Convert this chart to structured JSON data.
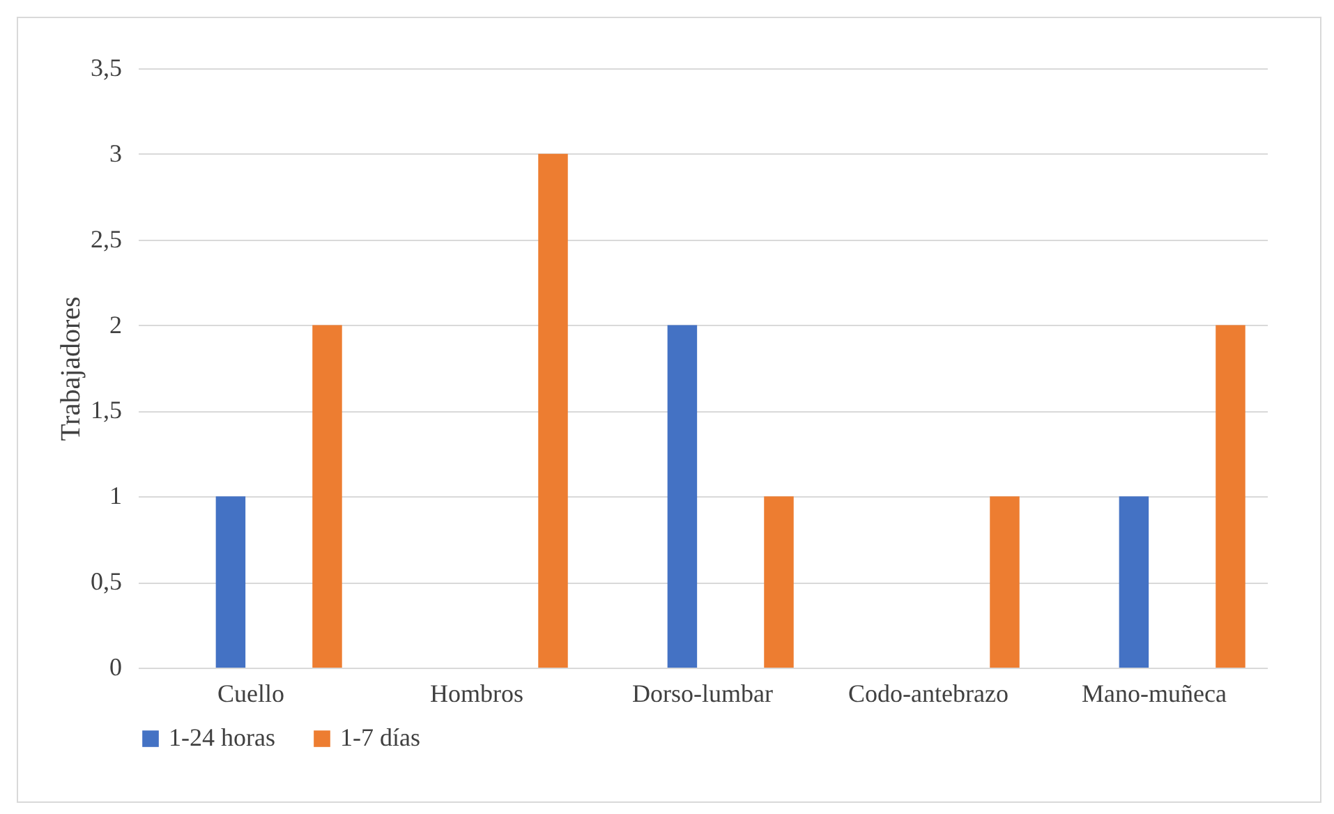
{
  "chart_data": {
    "type": "bar",
    "ylabel": "Trabajadores",
    "categories": [
      "Cuello",
      "Hombros",
      "Dorso-lumbar",
      "Codo-antebrazo",
      "Mano-muñeca"
    ],
    "series": [
      {
        "name": "1-24 horas",
        "color": "#4472c4",
        "values": [
          1,
          0,
          2,
          0,
          1
        ]
      },
      {
        "name": "1-7 días",
        "color": "#ed7d31",
        "values": [
          2,
          3,
          1,
          1,
          2
        ]
      }
    ],
    "ylim": [
      0,
      3.5
    ],
    "yticks": [
      0,
      {
        "value": 0.5,
        "label": "0,5"
      },
      1,
      {
        "value": 1.5,
        "label": "1,5"
      },
      2,
      {
        "value": 2.5,
        "label": "2,5"
      },
      3,
      {
        "value": 3.5,
        "label": "3,5"
      }
    ],
    "grid": "y",
    "legend": "bottom"
  }
}
